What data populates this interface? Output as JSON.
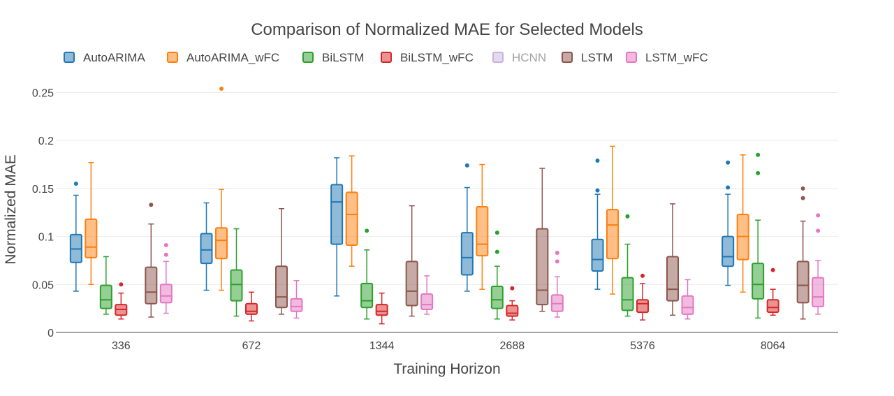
{
  "chart_data": {
    "type": "box",
    "title": "Comparison of Normalized MAE for Selected Models",
    "xlabel": "Training Horizon",
    "ylabel": "Normalized MAE",
    "ylim": [
      0,
      0.27
    ],
    "y_ticks": [
      0,
      0.05,
      0.1,
      0.15,
      0.2,
      0.25
    ],
    "y_tick_labels": [
      "0",
      "0.05",
      "0.1",
      "0.15",
      "0.2",
      "0.25"
    ],
    "categories": [
      "336",
      "672",
      "1344",
      "2688",
      "5376",
      "8064"
    ],
    "grid": "horizontal",
    "legend_position": "top-left",
    "series": [
      {
        "name": "AutoARIMA",
        "color": "#1f77b4",
        "hidden": false,
        "boxes": [
          {
            "min": 0.043,
            "q1": 0.073,
            "median": 0.087,
            "q3": 0.102,
            "max": 0.143,
            "outliers": [
              0.155
            ]
          },
          {
            "min": 0.044,
            "q1": 0.072,
            "median": 0.086,
            "q3": 0.103,
            "max": 0.135,
            "outliers": []
          },
          {
            "min": 0.038,
            "q1": 0.092,
            "median": 0.136,
            "q3": 0.154,
            "max": 0.182,
            "outliers": []
          },
          {
            "min": 0.043,
            "q1": 0.06,
            "median": 0.078,
            "q3": 0.104,
            "max": 0.151,
            "outliers": [
              0.174
            ]
          },
          {
            "min": 0.045,
            "q1": 0.064,
            "median": 0.076,
            "q3": 0.097,
            "max": 0.144,
            "outliers": [
              0.148,
              0.179
            ]
          },
          {
            "min": 0.049,
            "q1": 0.069,
            "median": 0.079,
            "q3": 0.1,
            "max": 0.144,
            "outliers": [
              0.151,
              0.177
            ]
          }
        ]
      },
      {
        "name": "AutoARIMA_wFC",
        "color": "#ff7f0e",
        "hidden": false,
        "boxes": [
          {
            "min": 0.05,
            "q1": 0.078,
            "median": 0.089,
            "q3": 0.118,
            "max": 0.177,
            "outliers": []
          },
          {
            "min": 0.044,
            "q1": 0.077,
            "median": 0.096,
            "q3": 0.109,
            "max": 0.149,
            "outliers": [
              0.254
            ]
          },
          {
            "min": 0.069,
            "q1": 0.091,
            "median": 0.123,
            "q3": 0.146,
            "max": 0.184,
            "outliers": []
          },
          {
            "min": 0.045,
            "q1": 0.08,
            "median": 0.092,
            "q3": 0.131,
            "max": 0.175,
            "outliers": []
          },
          {
            "min": 0.04,
            "q1": 0.077,
            "median": 0.112,
            "q3": 0.128,
            "max": 0.194,
            "outliers": []
          },
          {
            "min": 0.042,
            "q1": 0.076,
            "median": 0.1,
            "q3": 0.123,
            "max": 0.185,
            "outliers": []
          }
        ]
      },
      {
        "name": "BiLSTM",
        "color": "#2ca02c",
        "hidden": false,
        "boxes": [
          {
            "min": 0.019,
            "q1": 0.025,
            "median": 0.034,
            "q3": 0.049,
            "max": 0.079,
            "outliers": []
          },
          {
            "min": 0.017,
            "q1": 0.033,
            "median": 0.05,
            "q3": 0.065,
            "max": 0.108,
            "outliers": []
          },
          {
            "min": 0.014,
            "q1": 0.026,
            "median": 0.033,
            "q3": 0.051,
            "max": 0.086,
            "outliers": [
              0.106
            ]
          },
          {
            "min": 0.014,
            "q1": 0.025,
            "median": 0.034,
            "q3": 0.048,
            "max": 0.069,
            "outliers": [
              0.084,
              0.104
            ]
          },
          {
            "min": 0.017,
            "q1": 0.023,
            "median": 0.034,
            "q3": 0.057,
            "max": 0.092,
            "outliers": [
              0.121
            ]
          },
          {
            "min": 0.015,
            "q1": 0.035,
            "median": 0.05,
            "q3": 0.072,
            "max": 0.117,
            "outliers": [
              0.166,
              0.185
            ]
          }
        ]
      },
      {
        "name": "BiLSTM_wFC",
        "color": "#d62728",
        "hidden": false,
        "boxes": [
          {
            "min": 0.014,
            "q1": 0.018,
            "median": 0.024,
            "q3": 0.029,
            "max": 0.041,
            "outliers": [
              0.05
            ]
          },
          {
            "min": 0.012,
            "q1": 0.019,
            "median": 0.022,
            "q3": 0.03,
            "max": 0.042,
            "outliers": []
          },
          {
            "min": 0.009,
            "q1": 0.018,
            "median": 0.022,
            "q3": 0.029,
            "max": 0.041,
            "outliers": []
          },
          {
            "min": 0.013,
            "q1": 0.017,
            "median": 0.02,
            "q3": 0.028,
            "max": 0.033,
            "outliers": [
              0.046
            ]
          },
          {
            "min": 0.013,
            "q1": 0.021,
            "median": 0.03,
            "q3": 0.034,
            "max": 0.051,
            "outliers": [
              0.059
            ]
          },
          {
            "min": 0.018,
            "q1": 0.021,
            "median": 0.026,
            "q3": 0.034,
            "max": 0.045,
            "outliers": [
              0.065
            ]
          }
        ]
      },
      {
        "name": "HCNN",
        "color": "#9467bd",
        "hidden": true,
        "boxes": []
      },
      {
        "name": "LSTM",
        "color": "#8c564b",
        "hidden": false,
        "boxes": [
          {
            "min": 0.016,
            "q1": 0.03,
            "median": 0.042,
            "q3": 0.068,
            "max": 0.113,
            "outliers": [
              0.133
            ]
          },
          {
            "min": 0.019,
            "q1": 0.026,
            "median": 0.037,
            "q3": 0.069,
            "max": 0.129,
            "outliers": []
          },
          {
            "min": 0.017,
            "q1": 0.028,
            "median": 0.043,
            "q3": 0.074,
            "max": 0.132,
            "outliers": []
          },
          {
            "min": 0.022,
            "q1": 0.029,
            "median": 0.044,
            "q3": 0.108,
            "max": 0.171,
            "outliers": []
          },
          {
            "min": 0.018,
            "q1": 0.033,
            "median": 0.045,
            "q3": 0.079,
            "max": 0.134,
            "outliers": []
          },
          {
            "min": 0.014,
            "q1": 0.031,
            "median": 0.049,
            "q3": 0.074,
            "max": 0.116,
            "outliers": [
              0.14,
              0.15
            ]
          }
        ]
      },
      {
        "name": "LSTM_wFC",
        "color": "#e377c2",
        "hidden": false,
        "boxes": [
          {
            "min": 0.02,
            "q1": 0.031,
            "median": 0.038,
            "q3": 0.05,
            "max": 0.074,
            "outliers": [
              0.081,
              0.091
            ]
          },
          {
            "min": 0.015,
            "q1": 0.022,
            "median": 0.027,
            "q3": 0.035,
            "max": 0.054,
            "outliers": []
          },
          {
            "min": 0.019,
            "q1": 0.024,
            "median": 0.029,
            "q3": 0.04,
            "max": 0.059,
            "outliers": []
          },
          {
            "min": 0.016,
            "q1": 0.022,
            "median": 0.03,
            "q3": 0.039,
            "max": 0.058,
            "outliers": [
              0.074,
              0.083
            ]
          },
          {
            "min": 0.014,
            "q1": 0.019,
            "median": 0.026,
            "q3": 0.038,
            "max": 0.055,
            "outliers": []
          },
          {
            "min": 0.019,
            "q1": 0.027,
            "median": 0.037,
            "q3": 0.057,
            "max": 0.075,
            "outliers": [
              0.106,
              0.122
            ]
          }
        ]
      }
    ]
  }
}
